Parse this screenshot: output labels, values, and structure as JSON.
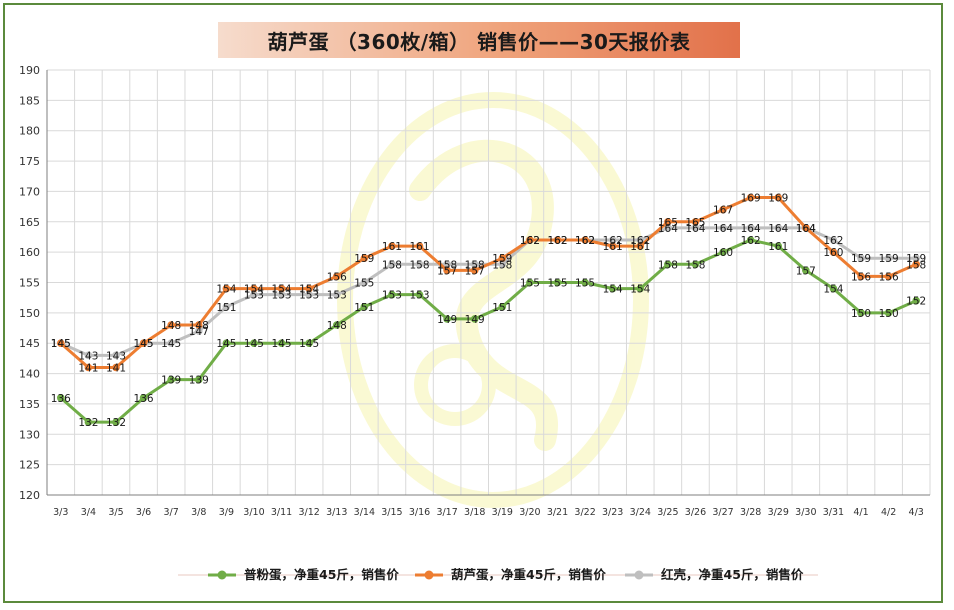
{
  "title": "葫芦蛋 （360枚/箱） 销售价——30天报价表",
  "chart_data": {
    "type": "line",
    "categories": [
      "3/3",
      "3/4",
      "3/5",
      "3/6",
      "3/7",
      "3/8",
      "3/9",
      "3/10",
      "3/11",
      "3/12",
      "3/13",
      "3/14",
      "3/15",
      "3/16",
      "3/17",
      "3/18",
      "3/19",
      "3/20",
      "3/21",
      "3/22",
      "3/23",
      "3/24",
      "3/25",
      "3/26",
      "3/27",
      "3/28",
      "3/29",
      "3/30",
      "3/31",
      "4/1",
      "4/2",
      "4/3"
    ],
    "ylim": [
      120,
      190
    ],
    "yticks": [
      120,
      125,
      130,
      135,
      140,
      145,
      150,
      155,
      160,
      165,
      170,
      175,
      180,
      185,
      190
    ],
    "grid": true,
    "legend_position": "bottom",
    "series": [
      {
        "name": "普粉蛋，净重45斤，销售价",
        "color": "#70ad47",
        "values": [
          136,
          132,
          132,
          136,
          139,
          139,
          145,
          145,
          145,
          145,
          148,
          151,
          153,
          153,
          149,
          149,
          151,
          155,
          155,
          155,
          154,
          154,
          158,
          158,
          160,
          162,
          161,
          157,
          154,
          150,
          150,
          152
        ]
      },
      {
        "name": "葫芦蛋，净重45斤，销售价",
        "color": "#ed7d31",
        "values": [
          145,
          141,
          141,
          145,
          148,
          148,
          154,
          154,
          154,
          154,
          156,
          159,
          161,
          161,
          157,
          157,
          159,
          162,
          162,
          162,
          161,
          161,
          165,
          165,
          167,
          169,
          169,
          164,
          160,
          156,
          156,
          158
        ]
      },
      {
        "name": "红壳，净重45斤，销售价",
        "color": "#bfbfbf",
        "values": [
          145,
          143,
          143,
          145,
          145,
          147,
          151,
          153,
          153,
          153,
          153,
          155,
          158,
          158,
          158,
          158,
          158,
          162,
          162,
          162,
          162,
          162,
          164,
          164,
          164,
          164,
          164,
          164,
          162,
          159,
          159,
          159
        ]
      }
    ]
  }
}
